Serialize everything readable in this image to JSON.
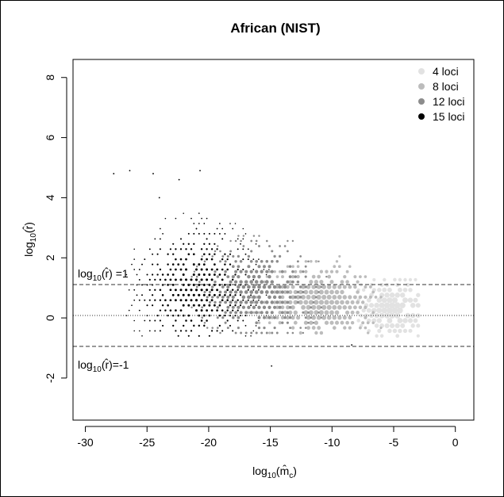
{
  "chart_data": {
    "type": "scatter",
    "title": "African (NIST)",
    "xlabel": "log10(m̂c)",
    "ylabel": "log10(r̂)",
    "xlim": [
      -31,
      1.5
    ],
    "ylim": [
      -3.4,
      8.6
    ],
    "x_ticks": [
      -30,
      -25,
      -20,
      -15,
      -10,
      -5,
      0
    ],
    "x_tick_labels": [
      "-30",
      "-25",
      "-20",
      "-15",
      "-10",
      "-5",
      "0"
    ],
    "y_ticks": [
      -2,
      0,
      2,
      4,
      6,
      8
    ],
    "y_tick_labels": [
      "-2",
      "0",
      "2",
      "4",
      "6",
      "8"
    ],
    "reference_lines": [
      {
        "y": 1,
        "style": "dashed",
        "label": "log10(r̂) =1"
      },
      {
        "y": 0,
        "style": "dotted",
        "label": ""
      },
      {
        "y": -1,
        "style": "dashed",
        "label": "log10(r̂)=-1"
      }
    ],
    "grid": false,
    "legend_position": "top-right",
    "legend": [
      {
        "label": "4 loci",
        "color": "#e2e2e2"
      },
      {
        "label": "8 loci",
        "color": "#bcbcbc"
      },
      {
        "label": "12 loci",
        "color": "#8c8c8c"
      },
      {
        "label": "15 loci",
        "color": "#000000"
      }
    ],
    "series": [
      {
        "name": "15 loci",
        "color": "#000000",
        "x_range": [
          -27.5,
          -15
        ],
        "y_range": [
          -0.6,
          4.9
        ],
        "density_center": [
          -21,
          1
        ]
      },
      {
        "name": "12 loci",
        "color": "#8c8c8c",
        "x_range": [
          -22,
          -10
        ],
        "y_range": [
          -0.5,
          3.6
        ],
        "density_center": [
          -16,
          0.9
        ]
      },
      {
        "name": "8 loci",
        "color": "#bcbcbc",
        "x_range": [
          -18,
          -6
        ],
        "y_range": [
          -0.5,
          3
        ],
        "density_center": [
          -11,
          0.5
        ]
      },
      {
        "name": "4 loci",
        "color": "#e2e2e2",
        "x_range": [
          -11,
          -3
        ],
        "y_range": [
          -0.6,
          2
        ],
        "density_center": [
          -5,
          0.3
        ]
      }
    ]
  }
}
